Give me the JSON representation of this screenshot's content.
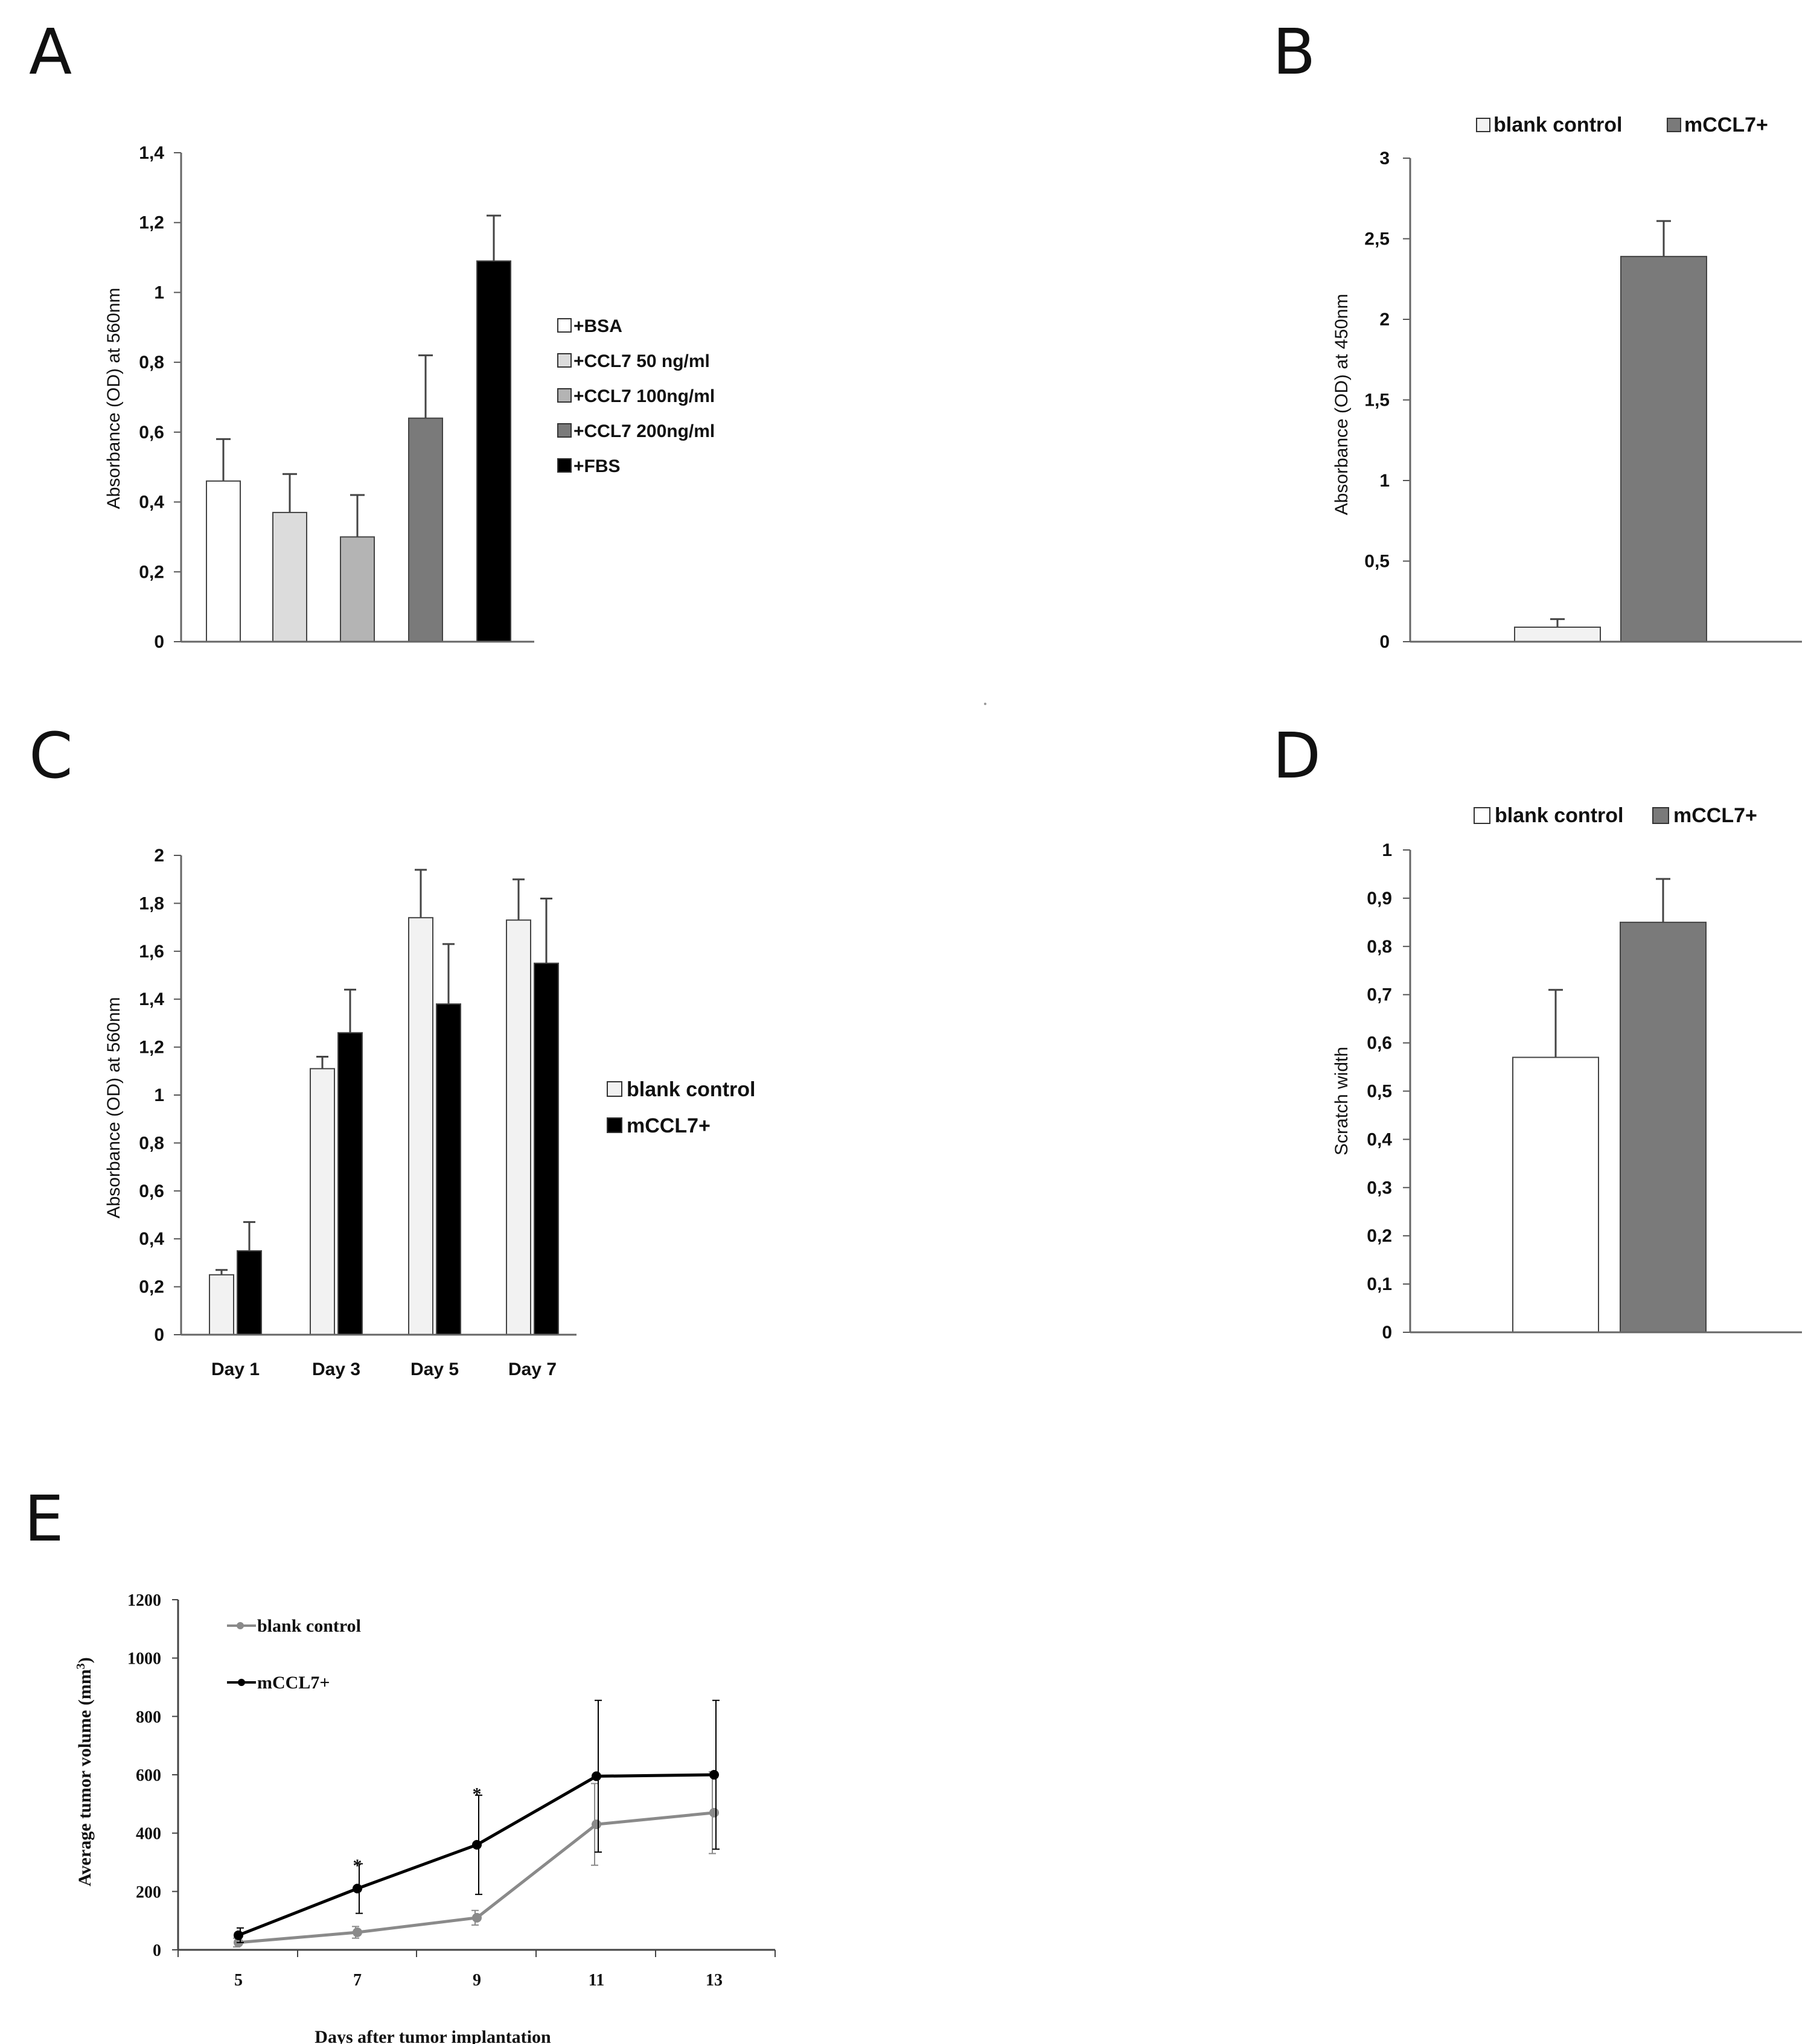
{
  "figure": {
    "background": "#ffffff"
  },
  "chart_data": [
    {
      "id": "A",
      "letter": "A",
      "type": "bar",
      "ylabel": "Absorbance (OD) at 560nm",
      "ylim": [
        0,
        1.4
      ],
      "yticks": [
        "0",
        "0,2",
        "0,4",
        "0,6",
        "0,8",
        "1",
        "1,2",
        "1,4"
      ],
      "categories": [
        "+BSA",
        "+CCL7 50 ng/ml",
        "+CCL7 100ng/ml",
        "+CCL7 200ng/ml",
        "+FBS"
      ],
      "values": [
        0.46,
        0.37,
        0.3,
        0.64,
        1.09
      ],
      "errors": [
        0.12,
        0.11,
        0.12,
        0.18,
        0.13
      ],
      "colors": [
        "#ffffff",
        "#dcdcdc",
        "#b4b4b4",
        "#7a7a7a",
        "#000000"
      ],
      "legend": {
        "placement": "right",
        "entries": [
          "+BSA",
          "+CCL7 50 ng/ml",
          "+CCL7 100ng/ml",
          "+CCL7 200ng/ml",
          "+FBS"
        ]
      }
    },
    {
      "id": "B",
      "letter": "B",
      "type": "bar",
      "ylabel": "Absorbance (OD) at 450nm",
      "ylim": [
        0,
        3
      ],
      "yticks": [
        "0",
        "0,5",
        "1",
        "1,5",
        "2",
        "2,5",
        "3"
      ],
      "categories": [
        "blank control",
        "mCCL7+"
      ],
      "values": [
        0.09,
        2.39
      ],
      "errors": [
        0.05,
        0.22
      ],
      "colors": [
        "#f2f2f2",
        "#7a7a7a"
      ],
      "legend": {
        "placement": "top",
        "entries": [
          "blank control",
          "mCCL7+"
        ]
      }
    },
    {
      "id": "C",
      "letter": "C",
      "type": "bar",
      "ylabel": "Absorbance (OD) at 560nm",
      "ylim": [
        0,
        2
      ],
      "yticks": [
        "0",
        "0,2",
        "0,4",
        "0,6",
        "0,8",
        "1",
        "1,2",
        "1,4",
        "1,6",
        "1,8",
        "2"
      ],
      "categories": [
        "Day 1",
        "Day 3",
        "Day 5",
        "Day 7"
      ],
      "series": [
        {
          "name": "blank control",
          "color": "#f2f2f2",
          "values": [
            0.25,
            1.11,
            1.74,
            1.73
          ],
          "errors": [
            0.02,
            0.05,
            0.2,
            0.17
          ]
        },
        {
          "name": "mCCL7+",
          "color": "#000000",
          "values": [
            0.35,
            1.26,
            1.38,
            1.55
          ],
          "errors": [
            0.12,
            0.18,
            0.25,
            0.27
          ]
        }
      ],
      "legend": {
        "placement": "right",
        "entries": [
          "blank control",
          "mCCL7+"
        ]
      }
    },
    {
      "id": "D",
      "letter": "D",
      "type": "bar",
      "ylabel": "Scratch width",
      "ylim": [
        0,
        1
      ],
      "yticks": [
        "0",
        "0,1",
        "0,2",
        "0,3",
        "0,4",
        "0,5",
        "0,6",
        "0,7",
        "0,8",
        "0,9",
        "1"
      ],
      "categories": [
        "blank control",
        "mCCL7+"
      ],
      "values": [
        0.57,
        0.85
      ],
      "errors": [
        0.14,
        0.09
      ],
      "colors": [
        "#ffffff",
        "#7a7a7a"
      ],
      "legend": {
        "placement": "top",
        "entries": [
          "blank control",
          "mCCL7+"
        ]
      }
    },
    {
      "id": "E",
      "letter": "E",
      "type": "line",
      "xlabel": "Days after tumor implantation",
      "ylabel": "Average tumor volume (mm",
      "ylabel_sup": "3",
      "ylabel_end": ")",
      "ylim": [
        0,
        1200
      ],
      "yticks": [
        "0",
        "200",
        "400",
        "600",
        "800",
        "1000",
        "1200"
      ],
      "x": [
        5,
        7,
        9,
        11,
        13
      ],
      "xticks": [
        "5",
        "7",
        "9",
        "11",
        "13"
      ],
      "series": [
        {
          "name": "blank control",
          "color": "#8a8a8a",
          "values": [
            25,
            60,
            110,
            430,
            470
          ],
          "errors": [
            15,
            20,
            25,
            140,
            140
          ]
        },
        {
          "name": "mCCL7+",
          "color": "#000000",
          "values": [
            50,
            210,
            360,
            595,
            600
          ],
          "errors": [
            25,
            85,
            170,
            260,
            255
          ]
        }
      ],
      "significance": [
        {
          "x": 7,
          "y": 315,
          "label": "*"
        },
        {
          "x": 9,
          "y": 560,
          "label": "*"
        }
      ],
      "legend": {
        "placement": "top-left",
        "entries": [
          "blank control",
          "mCCL7+"
        ]
      }
    }
  ]
}
